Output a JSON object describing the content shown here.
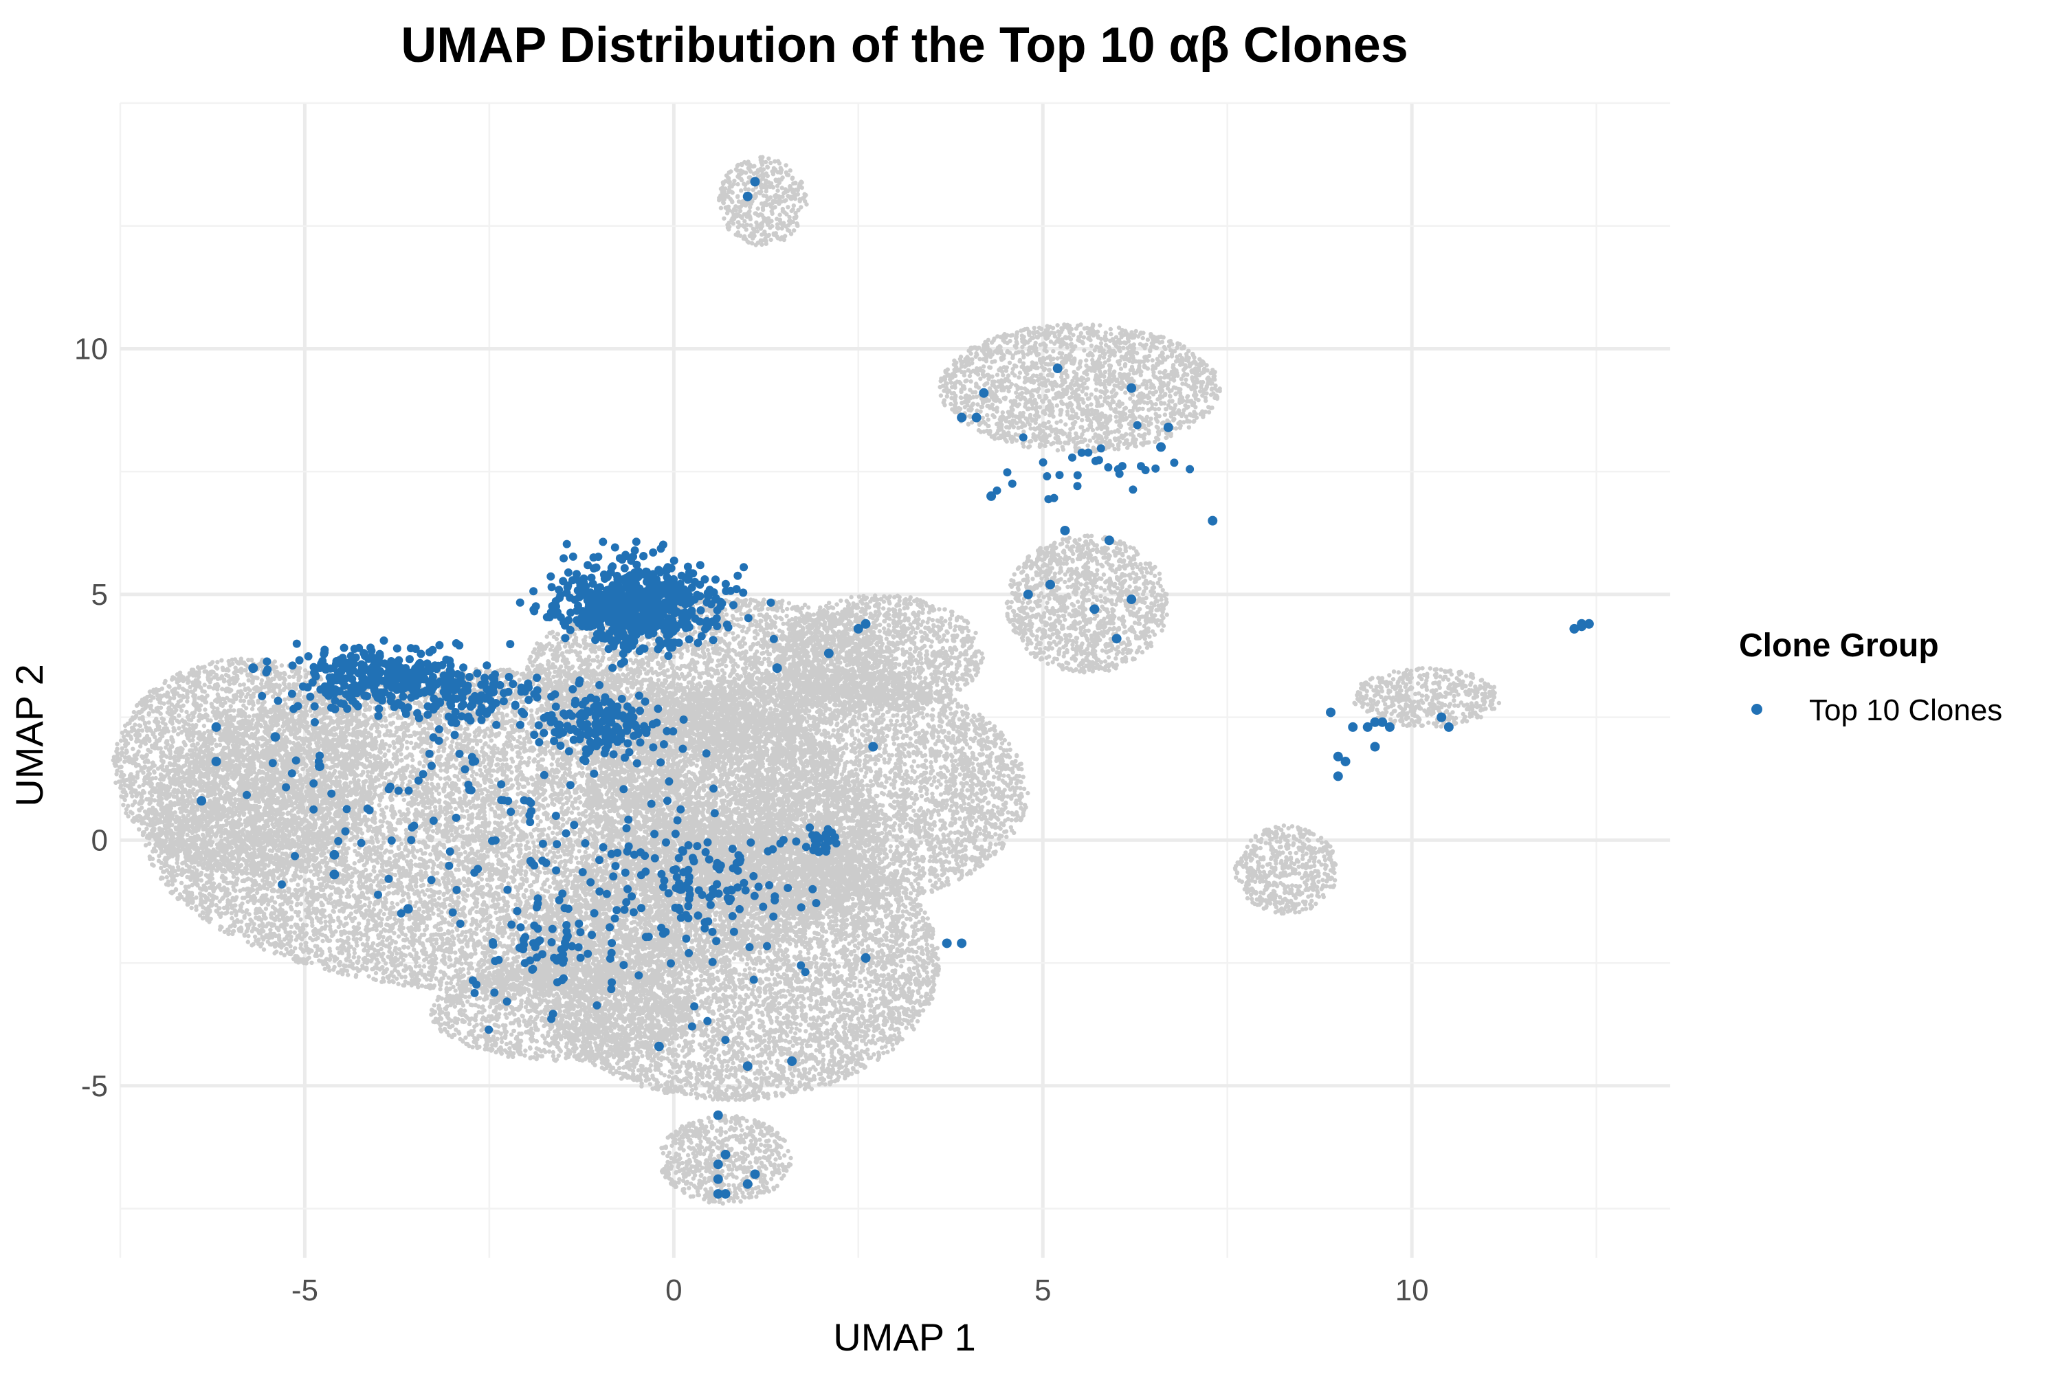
{
  "chart_data": {
    "type": "scatter",
    "title": "UMAP Distribution of the Top 10 αβ Clones",
    "xlabel": "UMAP 1",
    "ylabel": "UMAP 2",
    "xlim": [
      -7.5,
      13.5
    ],
    "ylim": [
      -8.5,
      15.0
    ],
    "x_ticks": [
      -5,
      0,
      5,
      10
    ],
    "y_ticks": [
      -5,
      0,
      5,
      10
    ],
    "grid": true,
    "legend": {
      "title": "Clone Group",
      "position": "right"
    },
    "colors": {
      "background_cells": "#cccccc",
      "highlight": "#2171b5",
      "grid": "#ebebeb"
    },
    "series": [
      {
        "role": "background-density",
        "description_regions": [
          {
            "cx": -2.2,
            "cy": 0.2,
            "rx": 5.0,
            "ry": 3.3
          },
          {
            "cx": -5.8,
            "cy": 1.5,
            "rx": 1.8,
            "ry": 2.2
          },
          {
            "cx": 0.8,
            "cy": -2.5,
            "rx": 2.8,
            "ry": 2.8
          },
          {
            "cx": 1.8,
            "cy": 1.0,
            "rx": 3.0,
            "ry": 2.5
          },
          {
            "cx": 0.5,
            "cy": 3.5,
            "rx": 2.5,
            "ry": 1.5
          },
          {
            "cx": 0.7,
            "cy": -6.5,
            "rx": 0.9,
            "ry": 0.9
          },
          {
            "cx": -1.5,
            "cy": -3.5,
            "rx": 1.8,
            "ry": 1.0
          },
          {
            "cx": 2.8,
            "cy": 3.8,
            "rx": 1.4,
            "ry": 1.2
          },
          {
            "cx": 5.5,
            "cy": 9.2,
            "rx": 1.9,
            "ry": 1.3
          },
          {
            "cx": 5.6,
            "cy": 4.8,
            "rx": 1.1,
            "ry": 1.4
          },
          {
            "cx": 1.2,
            "cy": 13.0,
            "rx": 0.6,
            "ry": 0.9
          },
          {
            "cx": 10.2,
            "cy": 2.9,
            "rx": 1.0,
            "ry": 0.6
          },
          {
            "cx": 8.3,
            "cy": -0.6,
            "rx": 0.7,
            "ry": 0.9
          }
        ]
      },
      {
        "name": "Top 10 Clones",
        "clusters": [
          {
            "cx": -0.5,
            "cy": 4.8,
            "sx": 0.55,
            "sy": 0.45,
            "n": 650
          },
          {
            "cx": -3.9,
            "cy": 3.3,
            "sx": 0.55,
            "sy": 0.3,
            "n": 320
          },
          {
            "cx": -2.8,
            "cy": 2.9,
            "sx": 0.5,
            "sy": 0.25,
            "n": 120
          },
          {
            "cx": -1.0,
            "cy": 2.3,
            "sx": 0.45,
            "sy": 0.3,
            "n": 170
          },
          {
            "cx": 0.3,
            "cy": -0.9,
            "sx": 0.5,
            "sy": 0.5,
            "n": 80
          },
          {
            "cx": -1.8,
            "cy": -2.2,
            "sx": 0.35,
            "sy": 0.35,
            "n": 45
          },
          {
            "cx": 2.0,
            "cy": 0.0,
            "sx": 0.12,
            "sy": 0.15,
            "n": 25
          },
          {
            "cx": 5.8,
            "cy": 7.7,
            "sx": 0.6,
            "sy": 0.5,
            "n": 28
          },
          {
            "cx": -0.5,
            "cy": -1.0,
            "sx": 1.3,
            "sy": 1.3,
            "n": 120
          },
          {
            "cx": -3.0,
            "cy": 0.6,
            "sx": 1.2,
            "sy": 1.1,
            "n": 70
          }
        ],
        "points": [
          [
            1.0,
            13.1
          ],
          [
            1.1,
            13.4
          ],
          [
            -6.4,
            0.8
          ],
          [
            -6.2,
            1.6
          ],
          [
            -6.2,
            2.3
          ],
          [
            -5.7,
            3.5
          ],
          [
            -5.4,
            2.1
          ],
          [
            -4.8,
            1.5
          ],
          [
            -4.6,
            -0.7
          ],
          [
            -4.6,
            -0.3
          ],
          [
            -3.6,
            -1.4
          ],
          [
            -0.2,
            -4.2
          ],
          [
            1.0,
            -4.6
          ],
          [
            1.6,
            -4.5
          ],
          [
            0.6,
            -5.6
          ],
          [
            0.6,
            -6.6
          ],
          [
            0.7,
            -6.4
          ],
          [
            0.6,
            -6.9
          ],
          [
            0.6,
            -7.2
          ],
          [
            0.7,
            -7.2
          ],
          [
            1.0,
            -7.0
          ],
          [
            1.1,
            -6.8
          ],
          [
            2.6,
            -2.4
          ],
          [
            3.7,
            -2.1
          ],
          [
            3.9,
            -2.1
          ],
          [
            2.7,
            1.9
          ],
          [
            1.4,
            3.5
          ],
          [
            2.1,
            3.8
          ],
          [
            2.5,
            4.3
          ],
          [
            2.6,
            4.4
          ],
          [
            6.2,
            9.2
          ],
          [
            5.2,
            9.6
          ],
          [
            4.2,
            9.1
          ],
          [
            6.7,
            8.4
          ],
          [
            3.9,
            8.6
          ],
          [
            4.1,
            8.6
          ],
          [
            6.6,
            8.0
          ],
          [
            4.3,
            7.0
          ],
          [
            7.3,
            6.5
          ],
          [
            5.9,
            6.1
          ],
          [
            5.3,
            6.3
          ],
          [
            5.1,
            5.2
          ],
          [
            4.8,
            5.0
          ],
          [
            5.7,
            4.7
          ],
          [
            6.2,
            4.9
          ],
          [
            6.0,
            4.1
          ],
          [
            12.2,
            4.3
          ],
          [
            12.3,
            4.4
          ],
          [
            12.4,
            4.4
          ],
          [
            12.3,
            4.35
          ],
          [
            8.9,
            2.6
          ],
          [
            9.2,
            2.3
          ],
          [
            9.4,
            2.3
          ],
          [
            9.5,
            2.4
          ],
          [
            9.6,
            2.4
          ],
          [
            9.7,
            2.3
          ],
          [
            10.4,
            2.5
          ],
          [
            10.5,
            2.3
          ],
          [
            9.0,
            1.7
          ],
          [
            9.1,
            1.6
          ],
          [
            9.0,
            1.3
          ],
          [
            9.5,
            1.9
          ]
        ]
      }
    ]
  }
}
